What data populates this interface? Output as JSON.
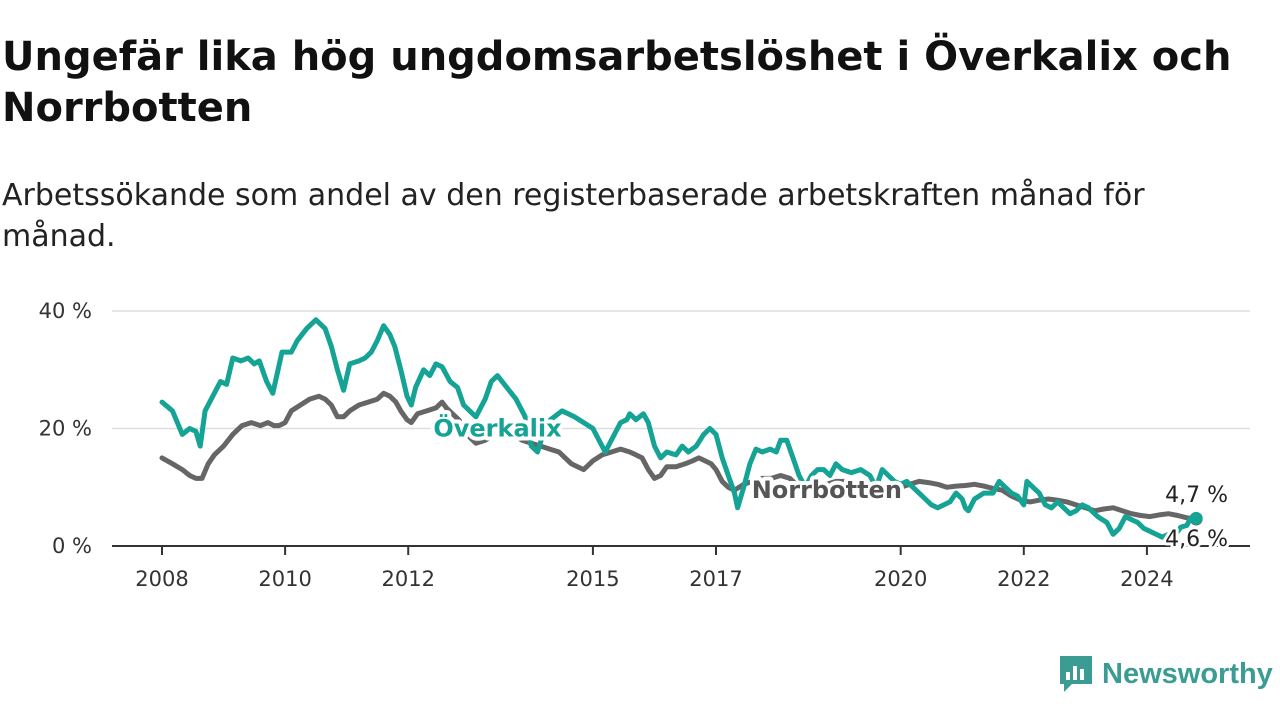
{
  "header": {
    "title": "Ungefär lika hög ungdomsarbetslöshet i Överkalix och Norrbotten",
    "subtitle": "Arbetssökande som andel av den registerbaserade arbetskraften månad för månad."
  },
  "branding": {
    "name": "Newsworthy",
    "icon": "newsworthy-logo-icon",
    "color": "#3a9c92"
  },
  "chart_data": {
    "type": "line",
    "title": "Ungefär lika hög ungdomsarbetslöshet i Överkalix och Norrbotten",
    "subtitle": "Arbetssökande som andel av den registerbaserade arbetskraften månad för månad.",
    "xlabel": "",
    "ylabel": "",
    "xlim": [
      2008.0,
      2024.83
    ],
    "ylim": [
      0,
      40
    ],
    "x_ticks": [
      2008,
      2010,
      2012,
      2015,
      2017,
      2020,
      2022,
      2024
    ],
    "y_ticks": [
      {
        "value": 0,
        "label": "0 %"
      },
      {
        "value": 20,
        "label": "20 %"
      },
      {
        "value": 40,
        "label": "40 %"
      }
    ],
    "grid": true,
    "legend": "none",
    "series": [
      {
        "name": "Överkalix",
        "color": "#14a394",
        "label_anchor": {
          "x": 2013.45,
          "y": 20
        },
        "end_label": "4,7 %",
        "points": [
          [
            2008.0,
            24.5
          ],
          [
            2008.17,
            23
          ],
          [
            2008.33,
            19
          ],
          [
            2008.45,
            20
          ],
          [
            2008.55,
            19.5
          ],
          [
            2008.62,
            17
          ],
          [
            2008.7,
            23
          ],
          [
            2008.85,
            26
          ],
          [
            2008.95,
            28
          ],
          [
            2009.05,
            27.5
          ],
          [
            2009.15,
            32
          ],
          [
            2009.28,
            31.5
          ],
          [
            2009.4,
            32
          ],
          [
            2009.5,
            31
          ],
          [
            2009.58,
            31.5
          ],
          [
            2009.7,
            28
          ],
          [
            2009.8,
            26
          ],
          [
            2009.95,
            33
          ],
          [
            2010.1,
            33
          ],
          [
            2010.2,
            35
          ],
          [
            2010.35,
            37
          ],
          [
            2010.5,
            38.5
          ],
          [
            2010.65,
            37
          ],
          [
            2010.75,
            34
          ],
          [
            2010.85,
            30
          ],
          [
            2010.95,
            26.5
          ],
          [
            2011.05,
            31
          ],
          [
            2011.2,
            31.5
          ],
          [
            2011.3,
            32
          ],
          [
            2011.4,
            33
          ],
          [
            2011.5,
            35
          ],
          [
            2011.6,
            37.5
          ],
          [
            2011.7,
            36
          ],
          [
            2011.78,
            34
          ],
          [
            2011.88,
            30
          ],
          [
            2011.98,
            25.5
          ],
          [
            2012.05,
            24
          ],
          [
            2012.12,
            27
          ],
          [
            2012.25,
            30
          ],
          [
            2012.35,
            29
          ],
          [
            2012.45,
            31
          ],
          [
            2012.55,
            30.5
          ],
          [
            2012.68,
            28
          ],
          [
            2012.8,
            27
          ],
          [
            2012.9,
            24
          ],
          [
            2013.0,
            23
          ],
          [
            2013.1,
            22
          ],
          [
            2013.25,
            25
          ],
          [
            2013.35,
            28
          ],
          [
            2013.45,
            29
          ],
          [
            2013.6,
            27
          ],
          [
            2013.75,
            25
          ],
          [
            2013.9,
            22
          ],
          [
            2014.0,
            17
          ],
          [
            2014.1,
            16
          ],
          [
            2014.25,
            21
          ],
          [
            2014.5,
            23
          ],
          [
            2014.7,
            22
          ],
          [
            2014.85,
            21
          ],
          [
            2015.0,
            20
          ],
          [
            2015.2,
            16
          ],
          [
            2015.35,
            19
          ],
          [
            2015.45,
            21
          ],
          [
            2015.55,
            21.5
          ],
          [
            2015.6,
            22.5
          ],
          [
            2015.7,
            21.5
          ],
          [
            2015.82,
            22.5
          ],
          [
            2015.9,
            21
          ],
          [
            2016.0,
            17
          ],
          [
            2016.1,
            15
          ],
          [
            2016.2,
            16
          ],
          [
            2016.35,
            15.5
          ],
          [
            2016.45,
            17
          ],
          [
            2016.55,
            16
          ],
          [
            2016.68,
            17
          ],
          [
            2016.8,
            19
          ],
          [
            2016.9,
            20
          ],
          [
            2017.0,
            19
          ],
          [
            2017.1,
            15
          ],
          [
            2017.2,
            12
          ],
          [
            2017.3,
            9
          ],
          [
            2017.35,
            6.5
          ],
          [
            2017.45,
            10
          ],
          [
            2017.55,
            14
          ],
          [
            2017.65,
            16.5
          ],
          [
            2017.75,
            16
          ],
          [
            2017.88,
            16.5
          ],
          [
            2017.98,
            16
          ],
          [
            2018.05,
            18
          ],
          [
            2018.15,
            18
          ],
          [
            2018.25,
            15
          ],
          [
            2018.35,
            12
          ],
          [
            2018.45,
            10
          ],
          [
            2018.55,
            12
          ],
          [
            2018.65,
            13
          ],
          [
            2018.75,
            13
          ],
          [
            2018.85,
            12
          ],
          [
            2018.95,
            14
          ],
          [
            2019.05,
            13
          ],
          [
            2019.2,
            12.5
          ],
          [
            2019.35,
            13
          ],
          [
            2019.5,
            12
          ],
          [
            2019.6,
            10
          ],
          [
            2019.7,
            13
          ],
          [
            2019.8,
            12
          ],
          [
            2019.9,
            11
          ],
          [
            2020.0,
            10.5
          ],
          [
            2020.1,
            11
          ],
          [
            2020.2,
            10
          ],
          [
            2020.3,
            9
          ],
          [
            2020.4,
            8
          ],
          [
            2020.5,
            7
          ],
          [
            2020.6,
            6.5
          ],
          [
            2020.7,
            7
          ],
          [
            2020.8,
            7.5
          ],
          [
            2020.9,
            9
          ],
          [
            2021.0,
            8
          ],
          [
            2021.05,
            6.5
          ],
          [
            2021.1,
            6
          ],
          [
            2021.2,
            8
          ],
          [
            2021.35,
            9
          ],
          [
            2021.5,
            9
          ],
          [
            2021.6,
            11
          ],
          [
            2021.7,
            10
          ],
          [
            2021.8,
            9
          ],
          [
            2021.9,
            8.5
          ],
          [
            2022.0,
            7
          ],
          [
            2022.05,
            11
          ],
          [
            2022.15,
            10
          ],
          [
            2022.25,
            9
          ],
          [
            2022.35,
            7
          ],
          [
            2022.45,
            6.5
          ],
          [
            2022.55,
            7.5
          ],
          [
            2022.65,
            6.5
          ],
          [
            2022.75,
            5.5
          ],
          [
            2022.85,
            6
          ],
          [
            2022.95,
            7
          ],
          [
            2023.05,
            6.5
          ],
          [
            2023.2,
            5
          ],
          [
            2023.35,
            4
          ],
          [
            2023.45,
            2
          ],
          [
            2023.55,
            3
          ],
          [
            2023.65,
            5
          ],
          [
            2023.75,
            4.5
          ],
          [
            2023.85,
            4
          ],
          [
            2023.95,
            3
          ],
          [
            2024.05,
            2.5
          ],
          [
            2024.15,
            2
          ],
          [
            2024.25,
            1.5
          ],
          [
            2024.35,
            2
          ],
          [
            2024.45,
            1.8
          ],
          [
            2024.55,
            3.2
          ],
          [
            2024.65,
            3.5
          ],
          [
            2024.7,
            4.6
          ],
          [
            2024.8,
            4.7
          ]
        ]
      },
      {
        "name": "Norrbotten",
        "color": "#666666",
        "label_anchor": {
          "x": 2018.8,
          "y": 9.5
        },
        "end_label": "4,6 %",
        "points": [
          [
            2008.0,
            15
          ],
          [
            2008.17,
            14
          ],
          [
            2008.33,
            13
          ],
          [
            2008.45,
            12
          ],
          [
            2008.55,
            11.5
          ],
          [
            2008.65,
            11.5
          ],
          [
            2008.75,
            14
          ],
          [
            2008.85,
            15.5
          ],
          [
            2009.0,
            17
          ],
          [
            2009.15,
            19
          ],
          [
            2009.3,
            20.5
          ],
          [
            2009.45,
            21
          ],
          [
            2009.6,
            20.5
          ],
          [
            2009.72,
            21
          ],
          [
            2009.82,
            20.5
          ],
          [
            2009.9,
            20.5
          ],
          [
            2010.0,
            21
          ],
          [
            2010.1,
            23
          ],
          [
            2010.25,
            24
          ],
          [
            2010.4,
            25
          ],
          [
            2010.55,
            25.5
          ],
          [
            2010.65,
            25
          ],
          [
            2010.75,
            24
          ],
          [
            2010.85,
            22
          ],
          [
            2010.95,
            22
          ],
          [
            2011.05,
            23
          ],
          [
            2011.2,
            24
          ],
          [
            2011.35,
            24.5
          ],
          [
            2011.5,
            25
          ],
          [
            2011.6,
            26
          ],
          [
            2011.7,
            25.5
          ],
          [
            2011.8,
            24.5
          ],
          [
            2011.88,
            23
          ],
          [
            2011.98,
            21.5
          ],
          [
            2012.05,
            21
          ],
          [
            2012.15,
            22.5
          ],
          [
            2012.3,
            23
          ],
          [
            2012.45,
            23.5
          ],
          [
            2012.55,
            24.5
          ],
          [
            2012.62,
            23.5
          ],
          [
            2012.72,
            22.5
          ],
          [
            2012.82,
            21.5
          ],
          [
            2012.92,
            20
          ],
          [
            2013.0,
            18.5
          ],
          [
            2013.1,
            17.5
          ],
          [
            2013.25,
            18
          ],
          [
            2013.4,
            19
          ],
          [
            2013.55,
            19.5
          ],
          [
            2013.7,
            19
          ],
          [
            2013.85,
            18
          ],
          [
            2014.0,
            17.5
          ],
          [
            2014.15,
            17
          ],
          [
            2014.3,
            16.5
          ],
          [
            2014.45,
            16
          ],
          [
            2014.55,
            15
          ],
          [
            2014.65,
            14
          ],
          [
            2014.75,
            13.5
          ],
          [
            2014.85,
            13
          ],
          [
            2015.0,
            14.5
          ],
          [
            2015.15,
            15.5
          ],
          [
            2015.3,
            16
          ],
          [
            2015.45,
            16.5
          ],
          [
            2015.6,
            16
          ],
          [
            2015.7,
            15.5
          ],
          [
            2015.8,
            15
          ],
          [
            2015.9,
            13
          ],
          [
            2016.0,
            11.5
          ],
          [
            2016.1,
            12
          ],
          [
            2016.2,
            13.5
          ],
          [
            2016.35,
            13.5
          ],
          [
            2016.5,
            14
          ],
          [
            2016.62,
            14.5
          ],
          [
            2016.72,
            15
          ],
          [
            2016.82,
            14.5
          ],
          [
            2016.92,
            14
          ],
          [
            2017.0,
            13
          ],
          [
            2017.1,
            11
          ],
          [
            2017.2,
            10
          ],
          [
            2017.3,
            9.5
          ],
          [
            2017.45,
            10.5
          ],
          [
            2017.6,
            11
          ],
          [
            2017.75,
            11.5
          ],
          [
            2017.9,
            11.5
          ],
          [
            2018.05,
            12
          ],
          [
            2018.2,
            11.5
          ],
          [
            2018.3,
            10.5
          ],
          [
            2018.4,
            9
          ],
          [
            2018.5,
            8.5
          ],
          [
            2018.6,
            9.5
          ],
          [
            2018.7,
            10
          ],
          [
            2018.8,
            10.5
          ],
          [
            2018.95,
            11
          ],
          [
            2019.1,
            11
          ],
          [
            2019.25,
            10.5
          ],
          [
            2019.4,
            10
          ],
          [
            2019.55,
            9.5
          ],
          [
            2019.7,
            9.2
          ],
          [
            2019.85,
            9.5
          ],
          [
            2020.0,
            10
          ],
          [
            2020.15,
            10.5
          ],
          [
            2020.3,
            11
          ],
          [
            2020.45,
            10.8
          ],
          [
            2020.6,
            10.5
          ],
          [
            2020.75,
            10
          ],
          [
            2020.9,
            10.2
          ],
          [
            2021.05,
            10.3
          ],
          [
            2021.2,
            10.5
          ],
          [
            2021.35,
            10.2
          ],
          [
            2021.5,
            9.8
          ],
          [
            2021.65,
            9.5
          ],
          [
            2021.8,
            8.5
          ],
          [
            2021.95,
            7.8
          ],
          [
            2022.1,
            7.5
          ],
          [
            2022.25,
            7.8
          ],
          [
            2022.4,
            8
          ],
          [
            2022.55,
            7.8
          ],
          [
            2022.7,
            7.5
          ],
          [
            2022.85,
            7
          ],
          [
            2023.0,
            6.5
          ],
          [
            2023.15,
            6
          ],
          [
            2023.3,
            6.3
          ],
          [
            2023.45,
            6.5
          ],
          [
            2023.6,
            6
          ],
          [
            2023.75,
            5.5
          ],
          [
            2023.9,
            5.2
          ],
          [
            2024.05,
            5
          ],
          [
            2024.2,
            5.3
          ],
          [
            2024.35,
            5.5
          ],
          [
            2024.5,
            5.2
          ],
          [
            2024.65,
            4.8
          ],
          [
            2024.8,
            4.6
          ]
        ]
      }
    ]
  }
}
